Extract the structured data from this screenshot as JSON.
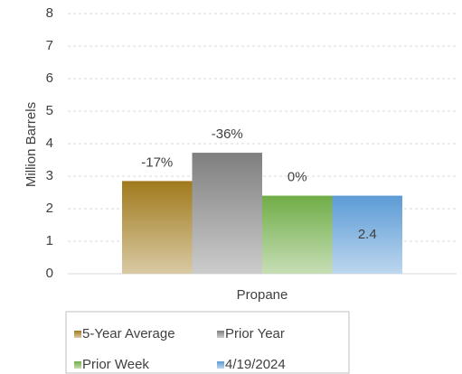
{
  "chart_data": {
    "type": "bar",
    "y_label": "Million Barrels",
    "categories": [
      "Propane"
    ],
    "series": [
      {
        "name": "5-Year Average",
        "color": "#a07a1c",
        "values": [
          2.85
        ],
        "annotation": "-17%"
      },
      {
        "name": "Prior Year",
        "color": "#7f7f7f",
        "values": [
          3.72
        ],
        "annotation": "-36%"
      },
      {
        "name": "Prior Week",
        "color": "#70ad47",
        "values": [
          2.4
        ],
        "annotation": "0%"
      },
      {
        "name": "4/19/2024",
        "color": "#5b9bd5",
        "values": [
          2.4
        ],
        "value_labels": [
          "2.4"
        ]
      }
    ],
    "ylim": [
      0,
      8
    ],
    "yticks": [
      0,
      1,
      2,
      3,
      4,
      5,
      6,
      7,
      8
    ],
    "grid": true,
    "legend": "bottom"
  }
}
